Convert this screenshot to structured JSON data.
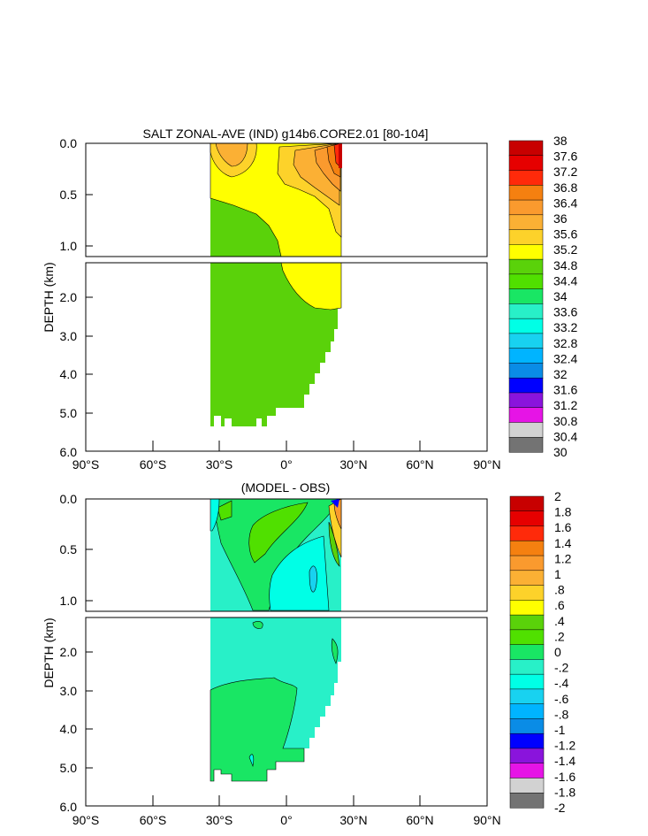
{
  "chart_data": [
    {
      "type": "heatmap",
      "title": "SALT ZONAL-AVE (IND) g14b6.CORE2.01 [80-104]",
      "ylabel": "DEPTH (km)",
      "x_ticks": [
        "90°S",
        "60°S",
        "30°S",
        "0°",
        "30°N",
        "60°N",
        "90°N"
      ],
      "y_ticks_upper": [
        "0.0",
        "0.5",
        "1.0"
      ],
      "y_ticks_lower": [
        "2.0",
        "3.0",
        "4.0",
        "5.0",
        "6.0"
      ],
      "xlim": [
        -90,
        90
      ],
      "ylim": [
        6.0,
        0.0
      ],
      "colorbar": {
        "labels": [
          "38",
          "37.6",
          "37.2",
          "36.8",
          "36.4",
          "36",
          "35.6",
          "35.2",
          "34.8",
          "34.4",
          "34",
          "33.6",
          "33.2",
          "32.8",
          "32.4",
          "32",
          "31.6",
          "31.2",
          "30.8",
          "30.4",
          "30"
        ],
        "colors": [
          "#c80000",
          "#e60000",
          "#ff2a0a",
          "#f58010",
          "#fa9a2e",
          "#fbb034",
          "#fdd22a",
          "#ffff00",
          "#5ad20a",
          "#50e000",
          "#19e664",
          "#28f0c8",
          "#00ffe6",
          "#18d2f0",
          "#00b4ff",
          "#0a8ce6",
          "#0000ff",
          "#8a14dc",
          "#e614e6",
          "#d2d2d2",
          "#737373"
        ]
      }
    },
    {
      "type": "heatmap",
      "title": "(MODEL - OBS)",
      "ylabel": "DEPTH (km)",
      "x_ticks": [
        "90°S",
        "60°S",
        "30°S",
        "0°",
        "30°N",
        "60°N",
        "90°N"
      ],
      "y_ticks_upper": [
        "0.0",
        "0.5",
        "1.0"
      ],
      "y_ticks_lower": [
        "2.0",
        "3.0",
        "4.0",
        "5.0",
        "6.0"
      ],
      "xlim": [
        -90,
        90
      ],
      "ylim": [
        6.0,
        0.0
      ],
      "colorbar": {
        "labels": [
          "2",
          "1.8",
          "1.6",
          "1.4",
          "1.2",
          "1",
          ".8",
          ".6",
          ".4",
          ".2",
          "0",
          "-.2",
          "-.4",
          "-.6",
          "-.8",
          "-1",
          "-1.2",
          "-1.4",
          "-1.6",
          "-1.8",
          "-2"
        ],
        "colors": [
          "#c80000",
          "#e60000",
          "#ff2a0a",
          "#f58010",
          "#fa9a2e",
          "#fbb034",
          "#fdd22a",
          "#ffff00",
          "#5ad20a",
          "#50e000",
          "#19e664",
          "#28f0c8",
          "#00ffe6",
          "#18d2f0",
          "#00b4ff",
          "#0a8ce6",
          "#0000ff",
          "#8a14dc",
          "#e614e6",
          "#d2d2d2",
          "#737373"
        ]
      }
    }
  ]
}
